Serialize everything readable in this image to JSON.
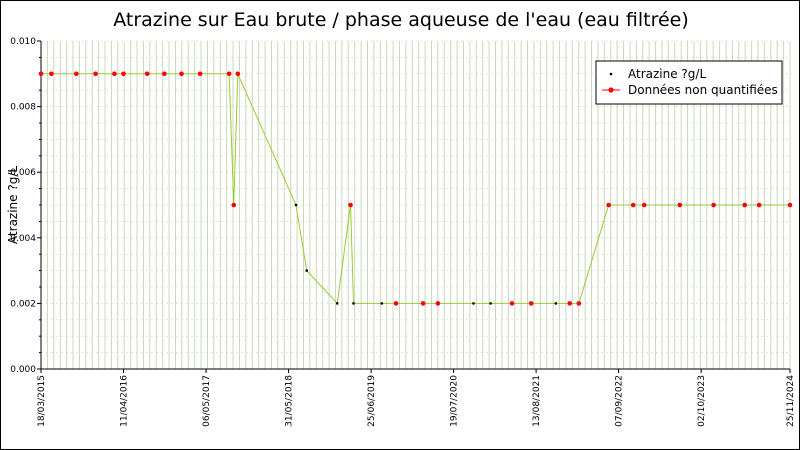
{
  "chart_data": {
    "type": "line",
    "title": "Atrazine sur Eau brute / phase aqueuse de l'eau (eau filtrée)",
    "xlabel": "",
    "ylabel": "Atrazine ?g/L",
    "xlim": [
      "2015-03-18",
      "2024-11-25"
    ],
    "ylim": [
      0,
      0.01
    ],
    "y_ticks": [
      "0.000",
      "0.002",
      "0.004",
      "0.006",
      "0.008",
      "0.010"
    ],
    "x_ticks": [
      "18/03/2015",
      "11/04/2016",
      "06/05/2017",
      "31/05/2018",
      "25/06/2019",
      "19/07/2020",
      "13/08/2021",
      "07/09/2022",
      "02/10/2023",
      "25/11/2024"
    ],
    "grid": true,
    "legend_position": "top-right",
    "colors": {
      "line": "#99cc33",
      "quantified": "#000000",
      "non_quantified": "#ff0000",
      "grid": "#ccd6bb",
      "plot_bg": "#ffffff"
    },
    "series": [
      {
        "name": "Atrazine ?g/L"
      },
      {
        "name": "Données non quantifiées"
      }
    ],
    "points": [
      {
        "date": "2015-03-18",
        "value": 0.009,
        "quantified": false
      },
      {
        "date": "2015-05-06",
        "value": 0.009,
        "quantified": false
      },
      {
        "date": "2015-09-01",
        "value": 0.009,
        "quantified": false
      },
      {
        "date": "2015-12-01",
        "value": 0.009,
        "quantified": false
      },
      {
        "date": "2016-02-28",
        "value": 0.009,
        "quantified": false
      },
      {
        "date": "2016-04-11",
        "value": 0.009,
        "quantified": false
      },
      {
        "date": "2016-08-01",
        "value": 0.009,
        "quantified": false
      },
      {
        "date": "2016-10-21",
        "value": 0.009,
        "quantified": false
      },
      {
        "date": "2017-01-10",
        "value": 0.009,
        "quantified": false
      },
      {
        "date": "2017-04-08",
        "value": 0.009,
        "quantified": false
      },
      {
        "date": "2017-08-23",
        "value": 0.009,
        "quantified": false
      },
      {
        "date": "2017-09-14",
        "value": 0.005,
        "quantified": false
      },
      {
        "date": "2017-10-03",
        "value": 0.009,
        "quantified": false
      },
      {
        "date": "2018-07-05",
        "value": 0.005,
        "quantified": true
      },
      {
        "date": "2018-08-25",
        "value": 0.003,
        "quantified": true
      },
      {
        "date": "2019-01-16",
        "value": 0.002,
        "quantified": true
      },
      {
        "date": "2019-03-20",
        "value": 0.005,
        "quantified": false
      },
      {
        "date": "2019-04-03",
        "value": 0.002,
        "quantified": true
      },
      {
        "date": "2019-08-15",
        "value": 0.002,
        "quantified": true
      },
      {
        "date": "2019-10-21",
        "value": 0.002,
        "quantified": false
      },
      {
        "date": "2020-02-26",
        "value": 0.002,
        "quantified": false
      },
      {
        "date": "2020-05-06",
        "value": 0.002,
        "quantified": false
      },
      {
        "date": "2020-10-21",
        "value": 0.002,
        "quantified": true
      },
      {
        "date": "2021-01-10",
        "value": 0.002,
        "quantified": true
      },
      {
        "date": "2021-04-21",
        "value": 0.002,
        "quantified": false
      },
      {
        "date": "2021-07-21",
        "value": 0.002,
        "quantified": false
      },
      {
        "date": "2021-11-14",
        "value": 0.002,
        "quantified": true
      },
      {
        "date": "2022-01-19",
        "value": 0.002,
        "quantified": false
      },
      {
        "date": "2022-03-03",
        "value": 0.002,
        "quantified": false
      },
      {
        "date": "2022-07-22",
        "value": 0.005,
        "quantified": false
      },
      {
        "date": "2022-11-15",
        "value": 0.005,
        "quantified": false
      },
      {
        "date": "2023-01-06",
        "value": 0.005,
        "quantified": false
      },
      {
        "date": "2023-06-23",
        "value": 0.005,
        "quantified": false
      },
      {
        "date": "2023-11-30",
        "value": 0.005,
        "quantified": false
      },
      {
        "date": "2024-04-25",
        "value": 0.005,
        "quantified": false
      },
      {
        "date": "2024-07-02",
        "value": 0.005,
        "quantified": false
      },
      {
        "date": "2024-11-25",
        "value": 0.005,
        "quantified": false
      }
    ]
  }
}
